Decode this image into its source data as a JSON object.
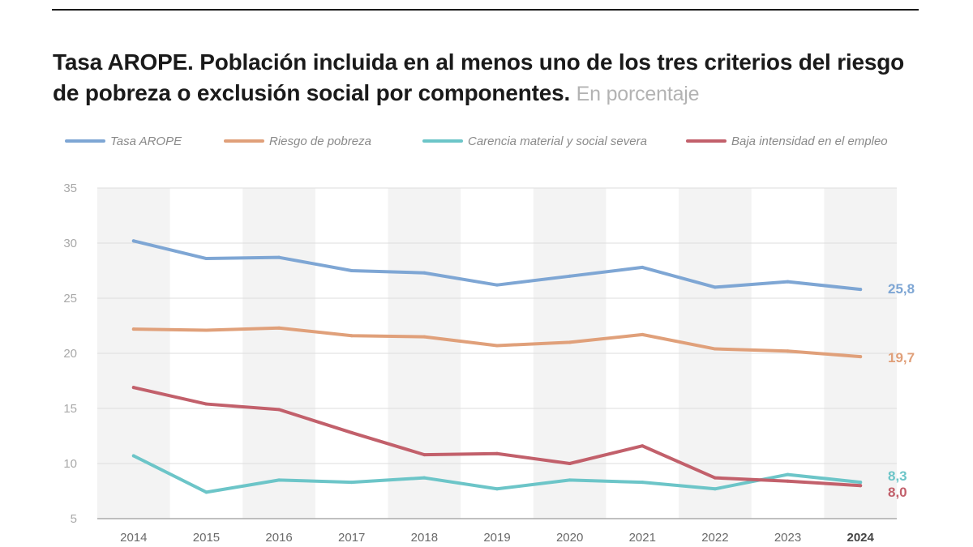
{
  "header": {
    "title": "Tasa AROPE. Población incluida en al menos uno de los tres criterios del riesgo de pobreza o exclusión social por componentes.",
    "subtitle": "En porcentaje"
  },
  "chart_data": {
    "type": "line",
    "x": [
      "2014",
      "2015",
      "2016",
      "2017",
      "2018",
      "2019",
      "2020",
      "2021",
      "2022",
      "2023",
      "2024"
    ],
    "ylim": [
      5,
      35
    ],
    "yticks": [
      "35",
      "30",
      "25",
      "20",
      "15",
      "10",
      "5"
    ],
    "grid": true,
    "legend_position": "top",
    "series": [
      {
        "name": "Tasa AROPE",
        "color": "#7ea6d4",
        "values": [
          30.2,
          28.6,
          28.7,
          27.5,
          27.3,
          26.2,
          27.0,
          27.8,
          26.0,
          26.5,
          25.8
        ],
        "end_label": "25,8"
      },
      {
        "name": "Riesgo de pobreza",
        "color": "#e0a07a",
        "values": [
          22.2,
          22.1,
          22.3,
          21.6,
          21.5,
          20.7,
          21.0,
          21.7,
          20.4,
          20.2,
          19.7
        ],
        "end_label": "19,7"
      },
      {
        "name": "Carencia material y social severa",
        "color": "#6cc5c8",
        "values": [
          10.7,
          7.4,
          8.5,
          8.3,
          8.7,
          7.7,
          8.5,
          8.3,
          7.7,
          9.0,
          8.3
        ],
        "end_label": "8,3"
      },
      {
        "name": "Baja intensidad en el empleo",
        "color": "#c2606b",
        "values": [
          16.9,
          15.4,
          14.9,
          12.8,
          10.8,
          10.9,
          10.0,
          11.6,
          8.7,
          8.4,
          8.0
        ],
        "end_label": "8,0"
      }
    ]
  }
}
